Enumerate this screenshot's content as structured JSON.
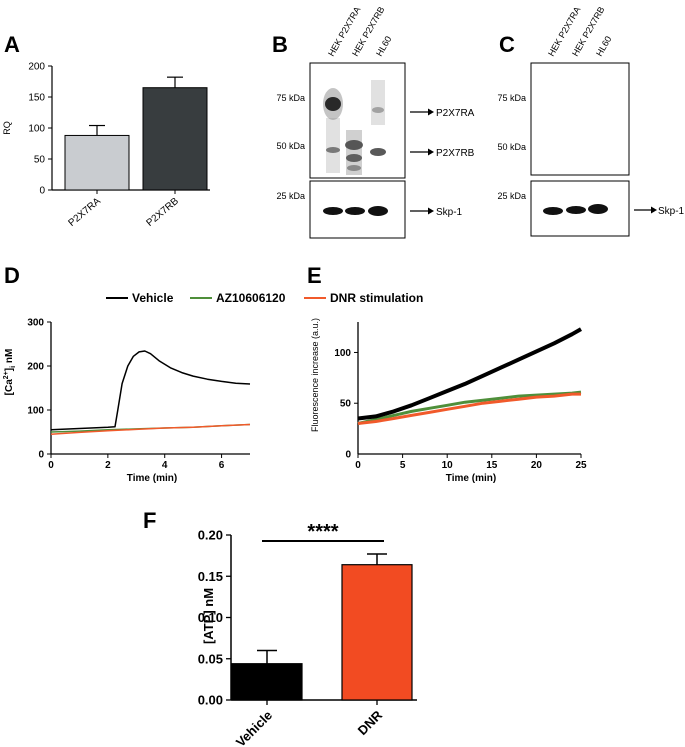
{
  "panels": {
    "A": "A",
    "B": "B",
    "C": "C",
    "D": "D",
    "E": "E",
    "F": "F"
  },
  "blots": {
    "lane_labels_b": [
      "HEK P2X7RA",
      "HEK P2X7RB",
      "HL60"
    ],
    "lane_labels_c": [
      "HEK P2X7RA",
      "HEK P2X7RB",
      "HL60"
    ],
    "markers": {
      "kda75": "75 kDa",
      "kda50": "50 kDa",
      "kda25": "25 kDa"
    },
    "arrows_b": {
      "ra": "P2X7RA",
      "rb": "P2X7RB",
      "skp": "Skp-1"
    },
    "arrows_c": {
      "skp": "Skp-1"
    }
  },
  "legend_de": {
    "vehicle": "Vehicle",
    "az": "AZ10606120",
    "dnr": "DNR stimulation"
  },
  "colors": {
    "vehicle": "#000000",
    "az": "#4f8f3a",
    "dnr": "#f15a2b",
    "bar_ra": "#c9ccd0",
    "bar_rb": "#383d3f",
    "bar_dnr": "#f24b22",
    "bar_veh": "#000000"
  },
  "chart_data": [
    {
      "id": "A",
      "type": "bar",
      "categories": [
        "P2X7RA",
        "P2X7RB"
      ],
      "values": [
        88,
        165
      ],
      "errors": [
        16,
        17
      ],
      "ylabel": "RQ",
      "ylim": [
        0,
        200
      ],
      "yticks": [
        0,
        50,
        100,
        150,
        200
      ]
    },
    {
      "id": "D",
      "type": "line",
      "xlabel": "Time (min)",
      "ylabel": "[Ca2+]i nM",
      "xlim": [
        0,
        7
      ],
      "ylim": [
        0,
        300
      ],
      "xticks": [
        0,
        2,
        4,
        6
      ],
      "yticks": [
        0,
        100,
        200,
        300
      ],
      "series": [
        {
          "name": "Vehicle",
          "x": [
            0,
            1,
            2,
            2.25,
            2.35,
            2.5,
            2.7,
            2.9,
            3.1,
            3.3,
            3.5,
            3.8,
            4.2,
            4.6,
            5,
            5.5,
            6,
            6.5,
            7
          ],
          "y": [
            55,
            58,
            61,
            62,
            100,
            160,
            200,
            222,
            232,
            234,
            228,
            212,
            196,
            185,
            177,
            170,
            165,
            161,
            159
          ]
        },
        {
          "name": "AZ10606120",
          "x": [
            0,
            1,
            2,
            3,
            4,
            5,
            6,
            7
          ],
          "y": [
            50,
            52,
            55,
            57,
            59,
            61,
            64,
            67
          ]
        },
        {
          "name": "DNR stimulation",
          "x": [
            0,
            1,
            2,
            3,
            4,
            5,
            6,
            7
          ],
          "y": [
            45,
            49,
            53,
            56,
            59,
            61,
            64,
            67
          ]
        }
      ]
    },
    {
      "id": "E",
      "type": "line",
      "xlabel": "Time (min)",
      "ylabel": "Fluorescence increase (a.u.)",
      "xlim": [
        0,
        25
      ],
      "ylim": [
        0,
        130
      ],
      "xticks": [
        0,
        5,
        10,
        15,
        20,
        25
      ],
      "yticks": [
        50,
        100
      ],
      "series": [
        {
          "name": "Vehicle",
          "x": [
            0,
            2,
            4,
            6,
            8,
            10,
            12,
            14,
            16,
            18,
            20,
            22,
            24,
            25
          ],
          "y": [
            35,
            37,
            42,
            48,
            55,
            62,
            69,
            77,
            85,
            93,
            101,
            109,
            118,
            123
          ]
        },
        {
          "name": "AZ10606120",
          "x": [
            0,
            2,
            4,
            6,
            8,
            10,
            12,
            14,
            16,
            18,
            20,
            22,
            24,
            25
          ],
          "y": [
            30,
            34,
            38,
            42,
            45,
            48,
            51,
            53,
            55,
            57,
            58,
            59,
            60,
            61
          ]
        },
        {
          "name": "DNR stimulation",
          "x": [
            0,
            2,
            4,
            6,
            8,
            10,
            12,
            14,
            16,
            18,
            20,
            22,
            24,
            25
          ],
          "y": [
            30,
            32,
            35,
            38,
            41,
            44,
            47,
            50,
            52,
            54,
            56,
            57,
            59,
            59
          ]
        }
      ]
    },
    {
      "id": "F",
      "type": "bar",
      "categories": [
        "Vehicle",
        "DNR"
      ],
      "values": [
        0.044,
        0.164
      ],
      "errors": [
        0.016,
        0.013
      ],
      "ylabel": "[ATP] nM",
      "ylim": [
        0,
        0.2
      ],
      "yticks": [
        "0.00",
        "0.05",
        "0.10",
        "0.15",
        "0.20"
      ],
      "significance": "****"
    }
  ]
}
